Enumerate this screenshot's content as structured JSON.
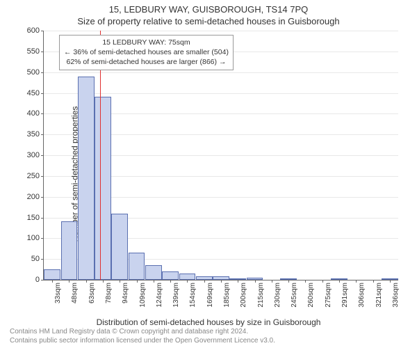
{
  "title": "15, LEDBURY WAY, GUISBOROUGH, TS14 7PQ",
  "subtitle": "Size of property relative to semi-detached houses in Guisborough",
  "ylabel": "Number of semi-detached properties",
  "xlabel": "Distribution of semi-detached houses by size in Guisborough",
  "attribution_line1": "Contains HM Land Registry data © Crown copyright and database right 2024.",
  "attribution_line2": "Contains public sector information licensed under the Open Government Licence v3.0.",
  "annotation": {
    "line1": "15 LEDBURY WAY: 75sqm",
    "line2": "← 36% of semi-detached houses are smaller (504)",
    "line3": "62% of semi-detached houses are larger (866) →"
  },
  "chart": {
    "type": "histogram",
    "ylim": [
      0,
      600
    ],
    "ytick_step": 50,
    "bar_fill": "#c9d3ee",
    "bar_stroke": "#5a6fb0",
    "marker_color": "#e03030",
    "marker_x_value": 75,
    "grid_color": "#666666",
    "background_color": "#ffffff",
    "x_start": 25,
    "x_bin_width": 15,
    "categories": [
      "33sqm",
      "48sqm",
      "63sqm",
      "78sqm",
      "94sqm",
      "109sqm",
      "124sqm",
      "139sqm",
      "154sqm",
      "169sqm",
      "185sqm",
      "200sqm",
      "215sqm",
      "230sqm",
      "245sqm",
      "260sqm",
      "275sqm",
      "291sqm",
      "306sqm",
      "321sqm",
      "336sqm"
    ],
    "values": [
      25,
      140,
      490,
      440,
      160,
      65,
      35,
      20,
      15,
      8,
      8,
      3,
      5,
      0,
      2,
      0,
      0,
      1,
      0,
      0,
      1
    ],
    "title_fontsize": 13,
    "label_fontsize": 12,
    "tick_fontsize": 11
  }
}
